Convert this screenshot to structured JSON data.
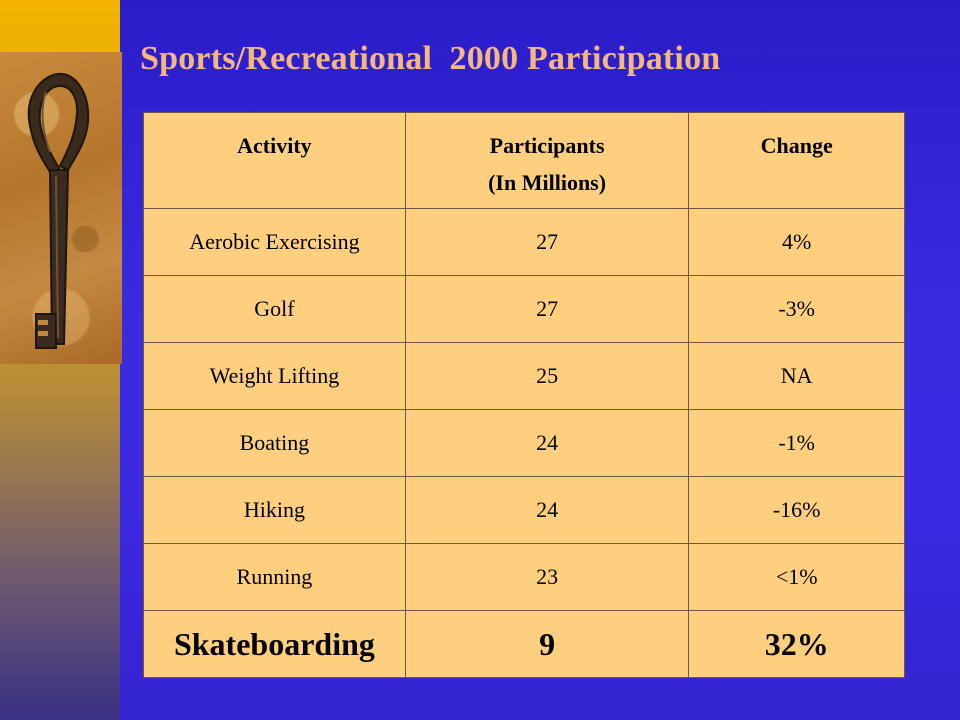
{
  "slide": {
    "title": "Sports/Recreational  2000 Participation"
  },
  "table": {
    "headers": {
      "activity": "Activity",
      "participants_line1": "Participants",
      "participants_line2": "(In Millions)",
      "change": "Change"
    },
    "rows": [
      {
        "activity": "Aerobic Exercising",
        "participants": "27",
        "change": "4%"
      },
      {
        "activity": "Golf",
        "participants": "27",
        "change": "-3%"
      },
      {
        "activity": "Weight Lifting",
        "participants": "25",
        "change": "NA"
      },
      {
        "activity": "Boating",
        "participants": "24",
        "change": "-1%"
      },
      {
        "activity": "Hiking",
        "participants": "24",
        "change": "-16%"
      },
      {
        "activity": "Running",
        "participants": "23",
        "change": "<1%"
      },
      {
        "activity": "Skateboarding",
        "participants": "9",
        "change": "32%"
      }
    ]
  },
  "colors": {
    "background": "#3a2ad8",
    "title": "#f4b87c",
    "table_fill": "#fdcf7f",
    "left_strip_top": "#f2b400"
  },
  "icons": {
    "decorative_image": "old-key-photo"
  }
}
